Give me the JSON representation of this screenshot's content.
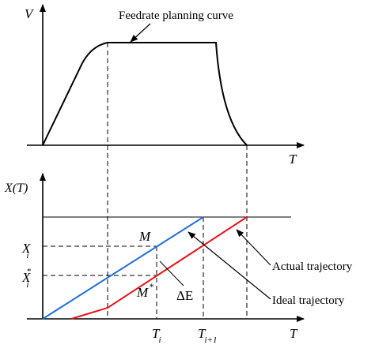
{
  "top_plot": {
    "y_axis_label": "V",
    "x_axis_label": "T",
    "curve_annotation": "Feedrate planning curve"
  },
  "bottom_plot": {
    "y_axis_label": "X(T)",
    "x_axis_label": "T",
    "point_m": "M",
    "point_m_star": "M",
    "point_m_star_sup": "*",
    "delta_e": "ΔE",
    "y_tick_xi_main": "X",
    "y_tick_xi_sub": "i",
    "y_tick_xi_star_main": "X",
    "y_tick_xi_star_sub": "i",
    "y_tick_xi_star_sup": "*",
    "x_tick_ti_main": "T",
    "x_tick_ti_sub": "i",
    "x_tick_ti1_main": "T",
    "x_tick_ti1_sub": "i+1",
    "legend_actual": "Actual trajectory",
    "legend_ideal": "Ideal trajectory"
  },
  "colors": {
    "ideal_trajectory": "#1f6fd6",
    "actual_trajectory": "#e8141c",
    "axes": "#000000"
  }
}
